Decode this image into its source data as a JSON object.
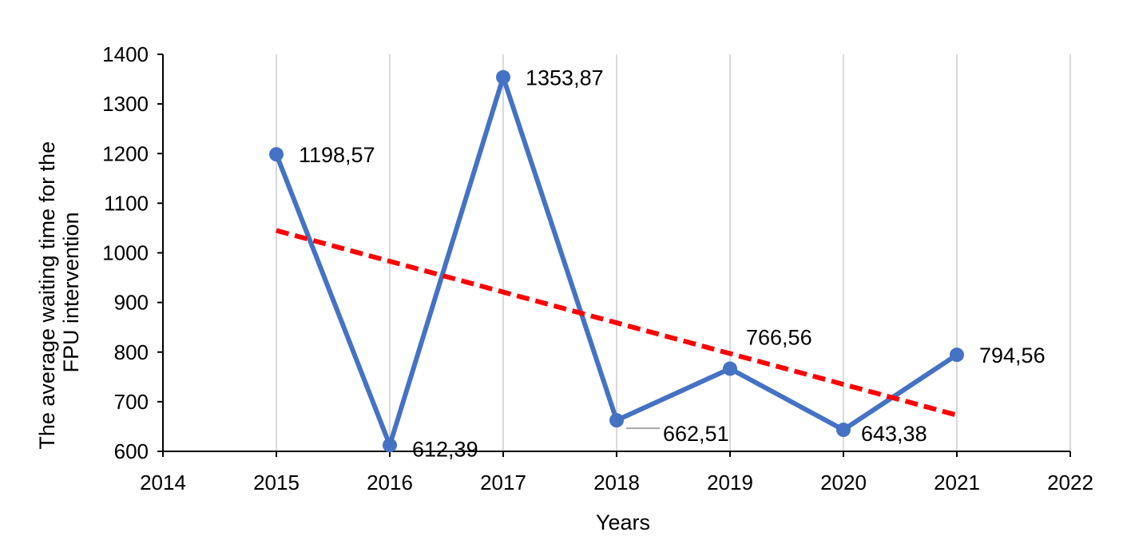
{
  "chart_data": {
    "type": "scatter",
    "title": "",
    "xlabel": "Years",
    "ylabel_lines": [
      "The average waiting time for the",
      "FPU intervention"
    ],
    "xlim": [
      2014,
      2022
    ],
    "ylim": [
      600,
      1400
    ],
    "x_ticks": [
      "2014",
      "2015",
      "2016",
      "2017",
      "2018",
      "2019",
      "2020",
      "2021",
      "2022"
    ],
    "y_ticks": [
      "600",
      "700",
      "800",
      "900",
      "1000",
      "1100",
      "1200",
      "1300",
      "1400"
    ],
    "grid": "vertical",
    "legend": "none",
    "series": [
      {
        "x": [
          2015,
          2016,
          2017,
          2018,
          2019,
          2020,
          2021
        ],
        "y": [
          1198.57,
          612.39,
          1353.87,
          662.51,
          766.56,
          643.38,
          794.56
        ],
        "labels": [
          "1198,57",
          "612,39",
          "1353,87",
          "662,51",
          "766,56",
          "643,38",
          "794,56"
        ],
        "color": "#4472C4",
        "style": "solid-line-with-markers"
      }
    ],
    "trendline": {
      "type": "linear",
      "color": "#FF0000",
      "style": "dashed",
      "x": [
        2015,
        2021
      ],
      "y": [
        1045,
        673
      ]
    }
  }
}
